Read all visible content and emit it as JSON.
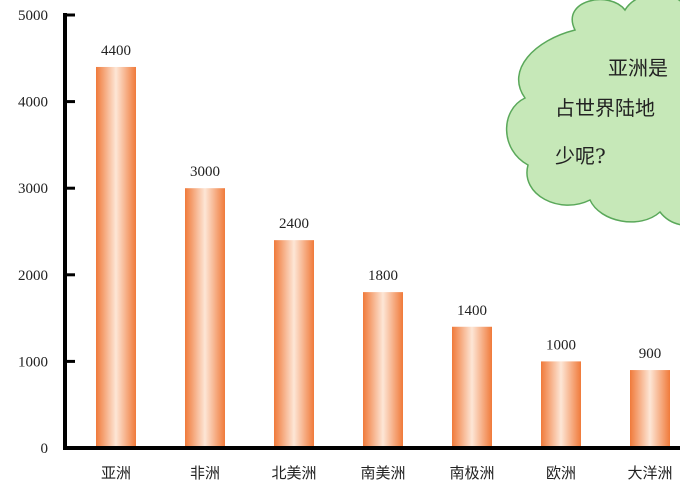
{
  "chart_data": {
    "type": "bar",
    "categories": [
      "亚洲",
      "非洲",
      "北美洲",
      "南美洲",
      "南极洲",
      "欧洲",
      "大洋洲"
    ],
    "values": [
      4400,
      3000,
      2400,
      1800,
      1400,
      1000,
      900
    ],
    "data_labels": [
      "4400",
      "3000",
      "2400",
      "1800",
      "1400",
      "1000",
      "900"
    ],
    "yticks": [
      0,
      1000,
      2000,
      3000,
      4000,
      5000
    ],
    "ytick_labels": [
      "0",
      "1000",
      "2000",
      "3000",
      "4000",
      "5000"
    ],
    "ylim": [
      0,
      5000
    ],
    "title": "",
    "xlabel": "",
    "ylabel": "",
    "grid": false,
    "bar_color": "#f07a3a",
    "bar_highlight": "#fde6d6"
  },
  "callout": {
    "lines": [
      "亚洲是",
      "占世界陆地",
      "少呢?"
    ],
    "fill": "#c6e8b8",
    "stroke": "#5aa85a"
  }
}
